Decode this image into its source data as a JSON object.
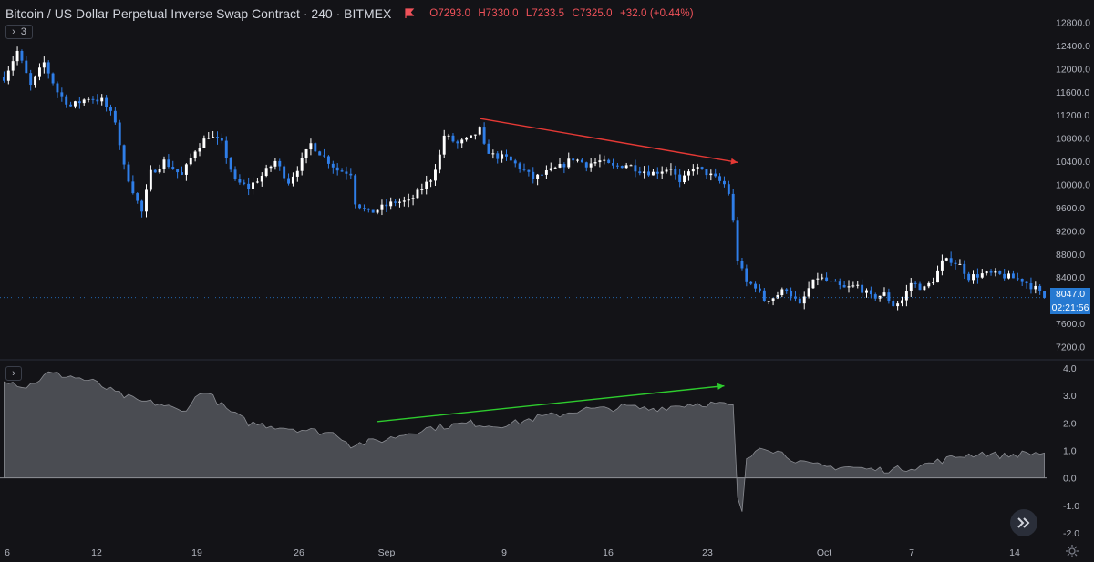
{
  "header": {
    "title": "Bitcoin / US Dollar Perpetual Inverse Swap Contract · 240 · BITMEX",
    "open": "O7293.0",
    "high": "H7330.0",
    "low": "L7233.5",
    "close": "C7325.0",
    "change": "+32.0 (+0.44%)"
  },
  "price_pane_toggle": "3",
  "indicator_pane_toggle": "›",
  "last_price": "8047.0",
  "countdown": "02:21:56",
  "colors": {
    "background": "#131317",
    "candle_up": "#ffffff",
    "candle_down": "#2f7ee8",
    "indicator_fill": "#4a4c52",
    "bearish_trendline": "#e53935",
    "bullish_trendline": "#2ecc2e",
    "price_tag": "#2679d1"
  },
  "icons": {
    "replay": "replay-fast-forward-icon",
    "settings": "gear-icon",
    "flag": "flag-icon"
  },
  "chart_data": [
    {
      "type": "candlestick",
      "panel": "price",
      "y_axis_ticks": [
        "12800.0",
        "12400.0",
        "12000.0",
        "11600.0",
        "11200.0",
        "10800.0",
        "10400.0",
        "10000.0",
        "9600.0",
        "9200.0",
        "8800.0",
        "8400.0",
        "8000.0",
        "7600.0",
        "7200.0"
      ],
      "ylim": [
        7050,
        12950
      ],
      "x_axis_ticks": [
        "6",
        "12",
        "19",
        "26",
        "Sep",
        "9",
        "16",
        "23",
        "Oct",
        "7",
        "14"
      ],
      "price_path": [
        [
          0,
          11850
        ],
        [
          3,
          12300
        ],
        [
          6,
          11700
        ],
        [
          9,
          12100
        ],
        [
          12,
          11600
        ],
        [
          15,
          11350
        ],
        [
          19,
          11500
        ],
        [
          22,
          11450
        ],
        [
          25,
          11100
        ],
        [
          27,
          10300
        ],
        [
          30,
          9700
        ],
        [
          31,
          9520
        ],
        [
          33,
          10200
        ],
        [
          36,
          10400
        ],
        [
          40,
          10150
        ],
        [
          43,
          10600
        ],
        [
          46,
          10850
        ],
        [
          49,
          10700
        ],
        [
          52,
          10050
        ],
        [
          55,
          9950
        ],
        [
          58,
          10150
        ],
        [
          61,
          10400
        ],
        [
          64,
          10050
        ],
        [
          67,
          10400
        ],
        [
          69,
          10700
        ],
        [
          71,
          10550
        ],
        [
          75,
          10250
        ],
        [
          78,
          10200
        ],
        [
          79,
          9700
        ],
        [
          82,
          9500
        ],
        [
          85,
          9600
        ],
        [
          88,
          9700
        ],
        [
          91,
          9700
        ],
        [
          93,
          9850
        ],
        [
          96,
          10100
        ],
        [
          98,
          10500
        ],
        [
          99,
          10850
        ],
        [
          102,
          10700
        ],
        [
          105,
          10800
        ],
        [
          107,
          10950
        ],
        [
          108,
          10650
        ],
        [
          110,
          10500
        ],
        [
          113,
          10450
        ],
        [
          116,
          10300
        ],
        [
          119,
          10100
        ],
        [
          122,
          10200
        ],
        [
          125,
          10300
        ],
        [
          128,
          10450
        ],
        [
          131,
          10350
        ],
        [
          134,
          10400
        ],
        [
          137,
          10300
        ],
        [
          140,
          10350
        ],
        [
          143,
          10250
        ],
        [
          146,
          10200
        ],
        [
          150,
          10300
        ],
        [
          152,
          10000
        ],
        [
          155,
          10300
        ],
        [
          158,
          10200
        ],
        [
          160,
          10100
        ],
        [
          162,
          10000
        ],
        [
          163,
          9850
        ],
        [
          164,
          9350
        ],
        [
          165,
          8700
        ],
        [
          167,
          8300
        ],
        [
          169,
          8250
        ],
        [
          171,
          8000
        ],
        [
          173,
          8050
        ],
        [
          176,
          8200
        ],
        [
          179,
          7900
        ],
        [
          181,
          8200
        ],
        [
          183,
          8400
        ],
        [
          186,
          8300
        ],
        [
          189,
          8200
        ],
        [
          192,
          8250
        ],
        [
          195,
          8050
        ],
        [
          198,
          8100
        ],
        [
          200,
          7920
        ],
        [
          202,
          8000
        ],
        [
          204,
          8300
        ],
        [
          207,
          8200
        ],
        [
          209,
          8350
        ],
        [
          211,
          8650
        ],
        [
          213,
          8700
        ],
        [
          215,
          8600
        ],
        [
          217,
          8400
        ],
        [
          220,
          8450
        ],
        [
          223,
          8450
        ],
        [
          226,
          8400
        ],
        [
          229,
          8350
        ],
        [
          232,
          8200
        ],
        [
          234,
          8047
        ]
      ],
      "total_candles": 235,
      "annotations": [
        {
          "kind": "trendline-arrow",
          "color": "#e53935",
          "from": [
            107,
            11140
          ],
          "to": [
            165,
            10380
          ]
        }
      ]
    },
    {
      "type": "area",
      "panel": "indicator",
      "y_axis_ticks": [
        "4.0",
        "3.0",
        "2.0",
        "1.0",
        "0.0",
        "-1.0",
        "-2.0"
      ],
      "ylim": [
        -2.3,
        4.2
      ],
      "zero_line": 0.0,
      "value_path": [
        [
          0,
          3.6
        ],
        [
          5,
          3.3
        ],
        [
          10,
          3.8
        ],
        [
          15,
          3.7
        ],
        [
          20,
          3.5
        ],
        [
          25,
          3.1
        ],
        [
          30,
          2.8
        ],
        [
          35,
          2.7
        ],
        [
          40,
          2.4
        ],
        [
          45,
          3.2
        ],
        [
          50,
          2.5
        ],
        [
          55,
          2.0
        ],
        [
          60,
          1.9
        ],
        [
          65,
          1.8
        ],
        [
          70,
          1.7
        ],
        [
          75,
          1.6
        ],
        [
          78,
          1.2
        ],
        [
          82,
          1.3
        ],
        [
          86,
          1.4
        ],
        [
          90,
          1.6
        ],
        [
          95,
          1.8
        ],
        [
          100,
          1.9
        ],
        [
          105,
          2.0
        ],
        [
          110,
          1.9
        ],
        [
          115,
          2.0
        ],
        [
          120,
          2.2
        ],
        [
          125,
          2.3
        ],
        [
          130,
          2.5
        ],
        [
          135,
          2.5
        ],
        [
          140,
          2.6
        ],
        [
          145,
          2.5
        ],
        [
          150,
          2.6
        ],
        [
          155,
          2.7
        ],
        [
          160,
          2.7
        ],
        [
          164,
          2.6
        ],
        [
          165,
          -0.8
        ],
        [
          166,
          -1.2
        ],
        [
          167,
          0.6
        ],
        [
          170,
          1.2
        ],
        [
          175,
          0.9
        ],
        [
          180,
          0.5
        ],
        [
          185,
          0.4
        ],
        [
          190,
          0.4
        ],
        [
          195,
          0.3
        ],
        [
          200,
          0.3
        ],
        [
          205,
          0.4
        ],
        [
          210,
          0.6
        ],
        [
          215,
          0.8
        ],
        [
          220,
          0.9
        ],
        [
          225,
          0.8
        ],
        [
          230,
          0.9
        ],
        [
          234,
          0.9
        ]
      ],
      "annotations": [
        {
          "kind": "trendline-arrow",
          "color": "#2ecc2e",
          "from": [
            84,
            2.05
          ],
          "to": [
            162,
            3.35
          ]
        }
      ]
    }
  ]
}
